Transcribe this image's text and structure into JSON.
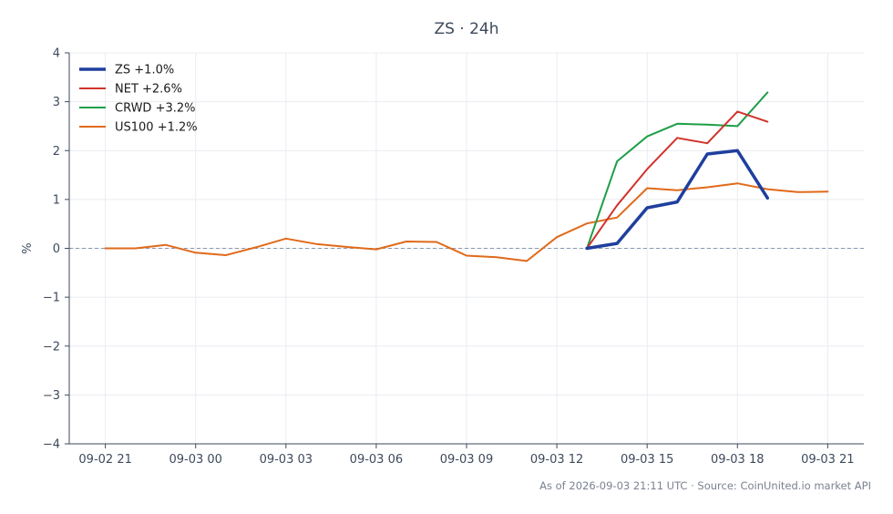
{
  "chart_data": {
    "type": "line",
    "title": "ZS · 24h",
    "ylabel": "%",
    "xlabel": "",
    "ylim": [
      -4,
      4
    ],
    "yticks": [
      -4,
      -3,
      -2,
      -1,
      0,
      1,
      2,
      3,
      4
    ],
    "ytick_labels": [
      "−4",
      "−3",
      "−2",
      "−1",
      "0",
      "1",
      "2",
      "3",
      "4"
    ],
    "xticks": [
      0,
      3,
      6,
      9,
      12,
      15,
      18,
      21,
      24
    ],
    "xtick_labels": [
      "09-02 21",
      "09-03 00",
      "09-03 03",
      "09-03 06",
      "09-03 09",
      "09-03 12",
      "09-03 15",
      "09-03 18",
      "09-03 21"
    ],
    "x_unit": "hours after 2026-09-02 21:00 UTC",
    "xlim": [
      -1.2,
      25.2
    ],
    "reference_line": 0,
    "grid": true,
    "legend_position": "top-left",
    "series": [
      {
        "name": "ZS +1.0%",
        "color": "#1f3f9e",
        "width": 3.5,
        "x": [
          16,
          17,
          18,
          19,
          20,
          21,
          22
        ],
        "y": [
          0.0,
          0.1,
          0.83,
          0.95,
          1.93,
          2.0,
          1.03
        ]
      },
      {
        "name": "NET +2.6%",
        "color": "#d0342c",
        "width": 2,
        "x": [
          16,
          17,
          18,
          19,
          20,
          21,
          22
        ],
        "y": [
          0.0,
          0.88,
          1.62,
          2.26,
          2.15,
          2.8,
          2.59
        ]
      },
      {
        "name": "CRWD +3.2%",
        "color": "#1e9e48",
        "width": 2,
        "x": [
          16,
          17,
          18,
          19,
          20,
          21,
          22
        ],
        "y": [
          0.0,
          1.78,
          2.29,
          2.55,
          2.53,
          2.5,
          3.19
        ]
      },
      {
        "name": "US100 +1.2%",
        "color": "#e06a1b",
        "width": 2,
        "x": [
          0,
          1,
          2,
          3,
          4,
          5,
          6,
          7,
          8,
          9,
          10,
          11,
          12,
          13,
          14,
          15,
          16,
          17,
          18,
          19,
          20,
          21,
          22,
          23,
          24
        ],
        "y": [
          0.0,
          0.0,
          0.07,
          -0.09,
          -0.14,
          0.02,
          0.2,
          0.09,
          0.03,
          -0.02,
          0.14,
          0.13,
          -0.15,
          -0.18,
          -0.26,
          0.23,
          0.51,
          0.63,
          1.23,
          1.19,
          1.25,
          1.33,
          1.21,
          1.15,
          1.16
        ]
      }
    ]
  },
  "footer": "As of 2026-09-03 21:11 UTC · Source: CoinUnited.io market API"
}
